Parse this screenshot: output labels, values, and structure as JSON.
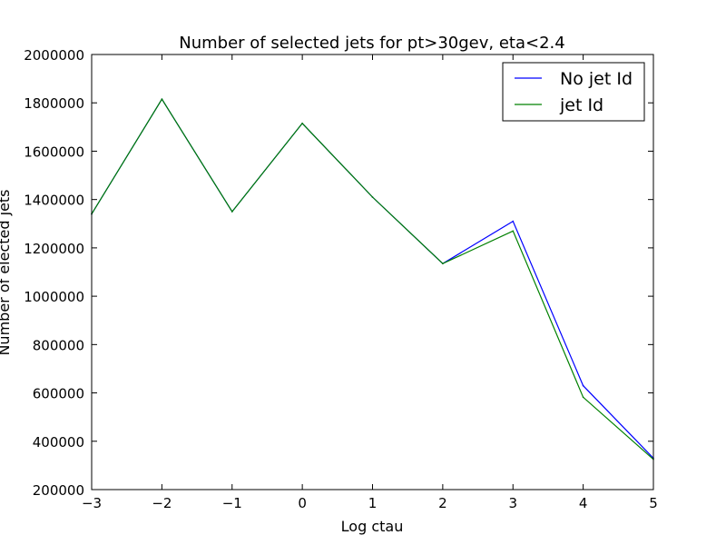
{
  "chart_data": {
    "type": "line",
    "title": "Number of selected jets for pt>30gev, eta<2.4",
    "xlabel": "Log ctau",
    "ylabel": "Number of elected jets",
    "xlim": [
      -3,
      5
    ],
    "ylim": [
      200000,
      2000000
    ],
    "x_ticks": [
      "−3",
      "−2",
      "−1",
      "0",
      "1",
      "2",
      "3",
      "4",
      "5"
    ],
    "y_ticks": [
      "200000",
      "400000",
      "600000",
      "800000",
      "1000000",
      "1200000",
      "1400000",
      "1600000",
      "1800000",
      "2000000"
    ],
    "x": [
      -3,
      -2,
      -1,
      0,
      1,
      2,
      3,
      4,
      5
    ],
    "series": [
      {
        "name": "No jet Id",
        "color": "#0000ff",
        "values": [
          1340000,
          1815000,
          1350000,
          1715000,
          1410000,
          1135000,
          1310000,
          630000,
          330000
        ]
      },
      {
        "name": "jet Id",
        "color": "#008000",
        "values": [
          1340000,
          1815000,
          1350000,
          1715000,
          1410000,
          1135000,
          1270000,
          582000,
          325000
        ]
      }
    ],
    "grid": false,
    "legend_position": "top-right"
  }
}
